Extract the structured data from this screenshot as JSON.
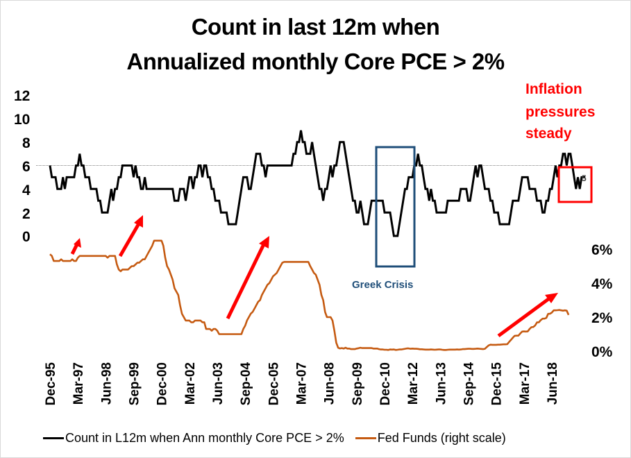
{
  "chart_data": {
    "type": "line",
    "title": [
      "Count in last 12m when",
      "Annualized monthly Core PCE > 2%"
    ],
    "x_start": "Dec-95",
    "x_frequency": "monthly",
    "x_tick_labels": [
      "Dec-95",
      "Mar-97",
      "Jun-98",
      "Sep-99",
      "Dec-00",
      "Mar-02",
      "Jun-03",
      "Sep-04",
      "Dec-05",
      "Mar-07",
      "Jun-08",
      "Sep-09",
      "Dec-10",
      "Mar-12",
      "Jun-13",
      "Sep-14",
      "Dec-15",
      "Mar-17",
      "Jun-18"
    ],
    "left_axis": {
      "ticks": [
        "12",
        "10",
        "8",
        "6",
        "4",
        "2",
        "0"
      ],
      "ylim": [
        0,
        12
      ],
      "reference_line": 6
    },
    "right_axis": {
      "ticks": [
        "6%",
        "4%",
        "2%",
        "0%"
      ],
      "ylim": [
        0,
        6
      ],
      "unit": "%"
    },
    "series": [
      {
        "name": "Count in L12m when Ann monthly Core PCE > 2%",
        "axis": "left",
        "color": "#000000",
        "values": [
          6,
          5,
          5,
          5,
          4,
          4,
          4,
          5,
          4,
          5,
          5,
          5,
          5,
          5,
          6,
          6,
          7,
          6,
          6,
          5,
          5,
          5,
          4,
          4,
          4,
          4,
          3,
          3,
          2,
          2,
          2,
          2,
          3,
          4,
          3,
          4,
          4,
          5,
          5,
          6,
          6,
          6,
          6,
          6,
          6,
          5,
          6,
          5,
          5,
          4,
          4,
          5,
          4,
          4,
          4,
          4,
          4,
          4,
          4,
          4,
          4,
          4,
          4,
          4,
          4,
          4,
          4,
          3,
          3,
          3,
          4,
          4,
          4,
          3,
          4,
          5,
          5,
          4,
          5,
          5,
          6,
          6,
          5,
          6,
          6,
          5,
          5,
          4,
          4,
          3,
          3,
          3,
          2,
          2,
          2,
          2,
          1,
          1,
          1,
          1,
          1,
          2,
          3,
          4,
          5,
          5,
          5,
          4,
          4,
          5,
          6,
          7,
          7,
          7,
          6,
          6,
          5,
          6,
          6,
          6,
          6,
          6,
          6,
          6,
          6,
          6,
          6,
          6,
          6,
          6,
          6,
          7,
          7,
          8,
          8,
          9,
          8,
          8,
          7,
          7,
          7,
          8,
          7,
          6,
          5,
          4,
          4,
          3,
          4,
          4,
          5,
          6,
          5,
          6,
          6,
          7,
          8,
          8,
          8,
          7,
          6,
          5,
          4,
          3,
          3,
          2,
          2,
          3,
          2,
          1,
          1,
          1,
          2,
          3,
          3,
          3,
          3,
          3,
          3,
          3,
          2,
          2,
          2,
          2,
          1,
          0,
          0,
          0,
          1,
          2,
          3,
          4,
          4,
          5,
          5,
          5,
          6,
          6,
          7,
          6,
          6,
          5,
          4,
          4,
          3,
          4,
          3,
          3,
          2,
          2,
          2,
          2,
          2,
          2,
          3,
          3,
          3,
          3,
          3,
          3,
          3,
          4,
          4,
          4,
          4,
          3,
          3,
          4,
          5,
          6,
          5,
          6,
          6,
          5,
          4,
          4,
          4,
          3,
          3,
          2,
          2,
          2,
          1,
          1,
          1,
          1,
          1,
          1,
          2,
          3,
          3,
          3,
          3,
          4,
          5,
          5,
          5,
          5,
          4,
          4,
          4,
          4,
          3,
          3,
          3,
          2,
          2,
          3,
          3,
          4,
          4,
          5,
          6,
          5,
          6,
          6,
          7,
          7,
          6,
          7,
          7,
          6,
          5,
          4,
          5,
          4,
          5,
          5,
          5
        ],
        "last_value_label": "5"
      },
      {
        "name": "Fed Funds (right scale)",
        "axis": "right",
        "color": "#c55a11",
        "values": [
          5.7,
          5.6,
          5.3,
          5.3,
          5.3,
          5.3,
          5.4,
          5.3,
          5.3,
          5.3,
          5.3,
          5.3,
          5.4,
          5.3,
          5.3,
          5.5,
          5.6,
          5.6,
          5.6,
          5.6,
          5.6,
          5.6,
          5.6,
          5.6,
          5.6,
          5.6,
          5.6,
          5.6,
          5.6,
          5.6,
          5.6,
          5.5,
          5.6,
          5.6,
          5.6,
          5.6,
          5.1,
          4.8,
          4.7,
          4.8,
          4.8,
          4.8,
          4.8,
          4.9,
          5.0,
          5.0,
          5.1,
          5.2,
          5.2,
          5.3,
          5.4,
          5.4,
          5.6,
          5.8,
          6.0,
          6.2,
          6.5,
          6.5,
          6.5,
          6.5,
          6.5,
          6.2,
          5.5,
          5.0,
          4.8,
          4.5,
          4.2,
          3.7,
          3.5,
          3.3,
          2.7,
          2.2,
          2.0,
          1.8,
          1.8,
          1.8,
          1.7,
          1.7,
          1.8,
          1.8,
          1.8,
          1.8,
          1.7,
          1.7,
          1.3,
          1.3,
          1.3,
          1.2,
          1.3,
          1.3,
          1.2,
          1.0,
          1.0,
          1.0,
          1.0,
          1.0,
          1.0,
          1.0,
          1.0,
          1.0,
          1.0,
          1.0,
          1.0,
          1.0,
          1.3,
          1.5,
          1.8,
          2.0,
          2.2,
          2.3,
          2.5,
          2.7,
          2.9,
          3.0,
          3.3,
          3.5,
          3.7,
          3.9,
          4.0,
          4.2,
          4.4,
          4.5,
          4.6,
          4.8,
          5.0,
          5.2,
          5.25,
          5.25,
          5.25,
          5.25,
          5.25,
          5.25,
          5.25,
          5.25,
          5.25,
          5.25,
          5.25,
          5.25,
          5.25,
          5.25,
          5.0,
          4.8,
          4.6,
          4.5,
          4.2,
          3.9,
          3.3,
          3.0,
          2.3,
          2.0,
          2.0,
          2.0,
          1.8,
          1.2,
          0.5,
          0.2,
          0.16,
          0.18,
          0.15,
          0.2,
          0.15,
          0.15,
          0.12,
          0.12,
          0.12,
          0.15,
          0.17,
          0.2,
          0.18,
          0.18,
          0.18,
          0.18,
          0.18,
          0.18,
          0.15,
          0.15,
          0.15,
          0.12,
          0.1,
          0.1,
          0.08,
          0.08,
          0.07,
          0.1,
          0.09,
          0.1,
          0.07,
          0.08,
          0.1,
          0.1,
          0.12,
          0.14,
          0.16,
          0.16,
          0.14,
          0.15,
          0.14,
          0.14,
          0.13,
          0.11,
          0.11,
          0.1,
          0.09,
          0.09,
          0.09,
          0.1,
          0.09,
          0.08,
          0.09,
          0.1,
          0.1,
          0.08,
          0.07,
          0.07,
          0.08,
          0.09,
          0.09,
          0.09,
          0.09,
          0.1,
          0.09,
          0.1,
          0.12,
          0.12,
          0.13,
          0.14,
          0.14,
          0.13,
          0.13,
          0.14,
          0.15,
          0.14,
          0.13,
          0.12,
          0.14,
          0.24,
          0.34,
          0.38,
          0.37,
          0.37,
          0.37,
          0.38,
          0.38,
          0.39,
          0.4,
          0.4,
          0.41,
          0.54,
          0.66,
          0.79,
          0.9,
          0.91,
          0.91,
          1.04,
          1.15,
          1.16,
          1.15,
          1.16,
          1.3,
          1.41,
          1.42,
          1.51,
          1.69,
          1.7,
          1.82,
          1.91,
          1.91,
          1.95,
          2.19,
          2.2,
          2.27,
          2.4,
          2.4,
          2.41,
          2.42,
          2.4,
          2.38,
          2.4,
          2.38,
          2.13
        ]
      }
    ],
    "annotations": {
      "inflation_note": [
        "Inflation",
        "pressures",
        "steady"
      ],
      "greek_crisis": "Greek Crisis",
      "greek_box_range": [
        "Aug-10",
        "Aug-12"
      ],
      "latest_box_label": "5"
    },
    "legend": {
      "position": "bottom",
      "entries": [
        {
          "label": "Count in L12m when Ann monthly Core PCE > 2%",
          "color": "#000000"
        },
        {
          "label": "Fed Funds (right scale)",
          "color": "#c55a11"
        }
      ]
    },
    "grid": false,
    "arrow_color": "#ff0000",
    "greek_box_color": "#1f4e79",
    "latest_box_color": "#ff0000"
  }
}
